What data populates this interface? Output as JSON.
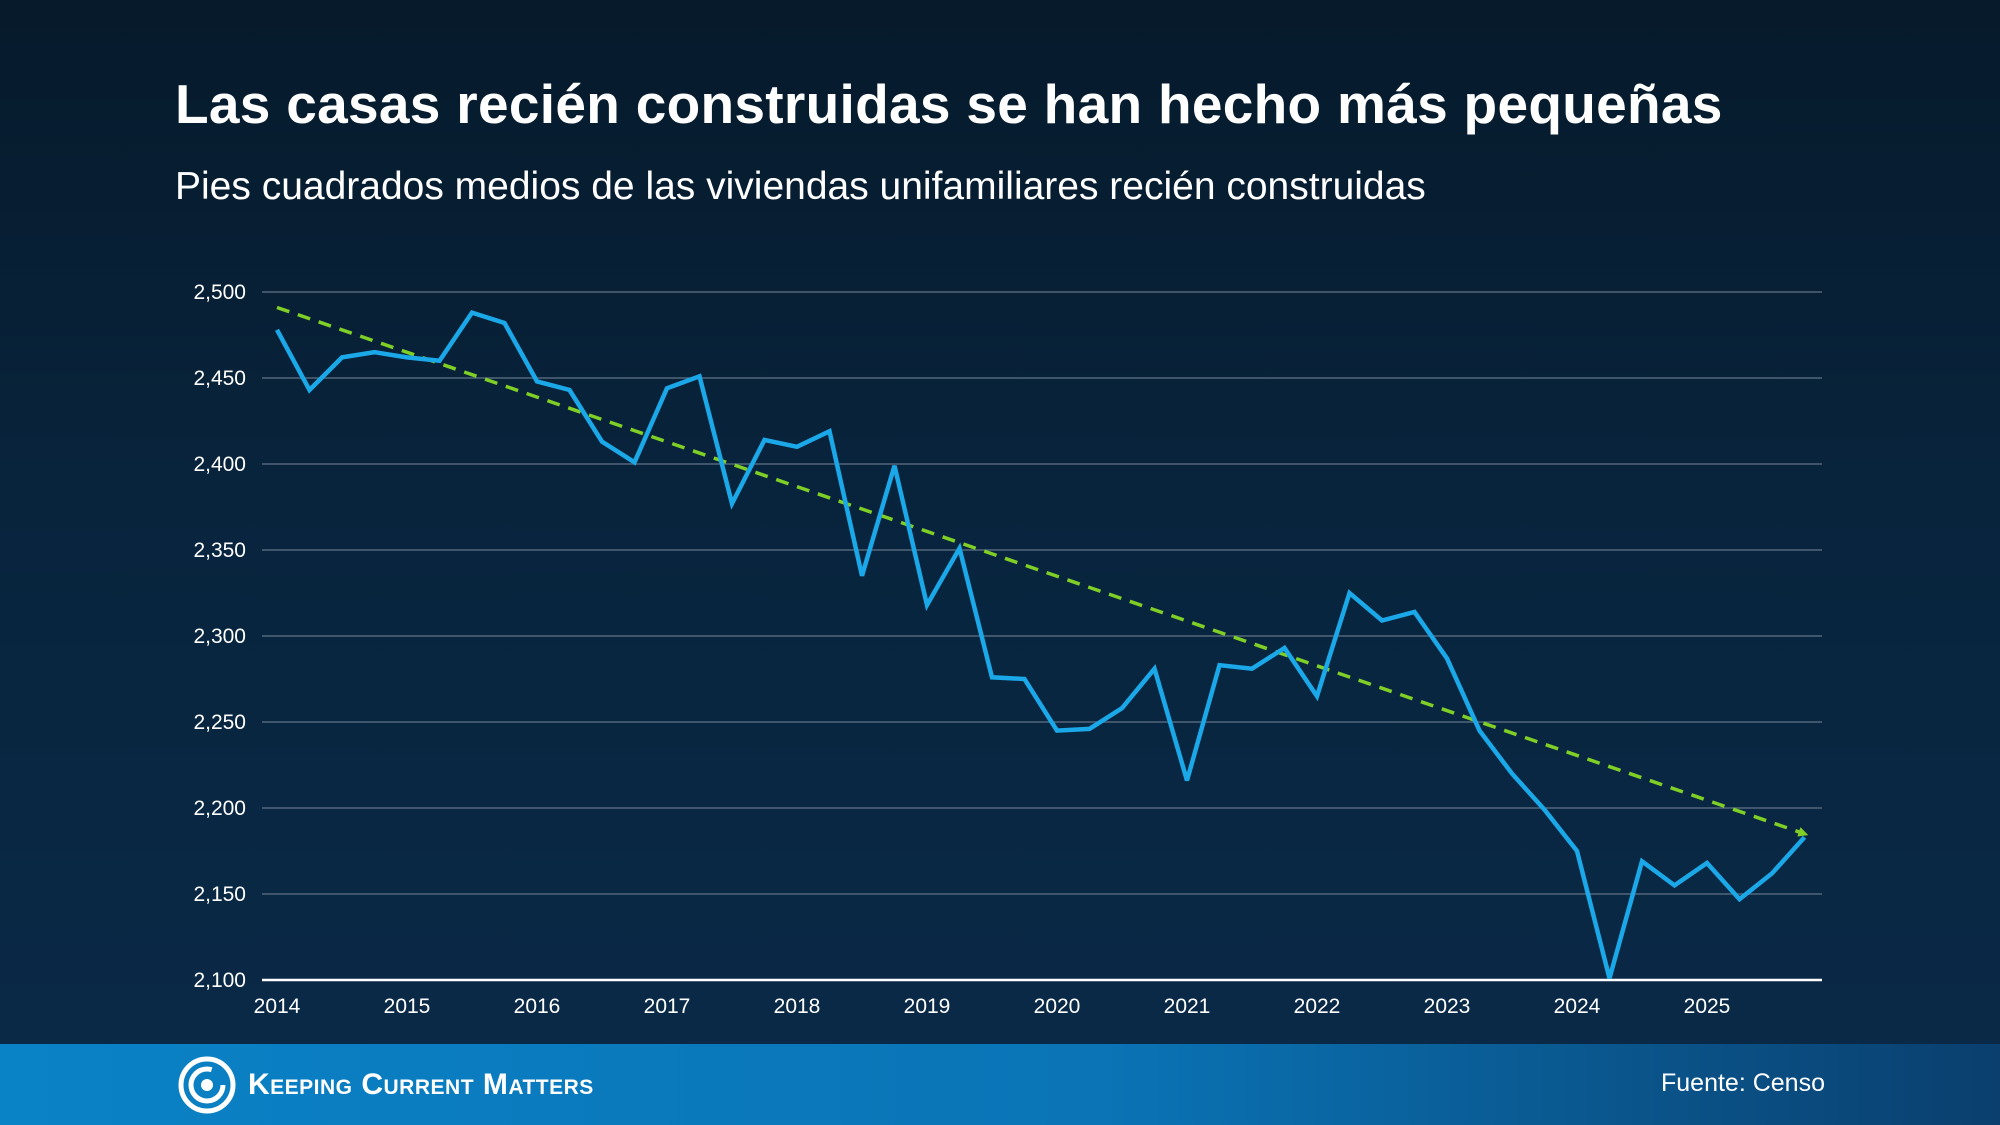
{
  "header": {
    "title": "Las casas recién construidas se han hecho más pequeñas",
    "subtitle": "Pies cuadrados medios de las viviendas unifamiliares recién construidas"
  },
  "footer": {
    "brand": "Keeping Current Matters",
    "source": "Fuente: Censo"
  },
  "colors": {
    "series": "#1ba8e8",
    "trend": "#7fcf26",
    "grid": "#52667a",
    "axis": "#ffffff"
  },
  "chart_data": {
    "type": "line",
    "title": "Las casas recién construidas se han hecho más pequeñas",
    "subtitle": "Pies cuadrados medios de las viviendas unifamiliares recién construidas",
    "xlabel": "",
    "ylabel": "",
    "ylim": [
      2100,
      2500
    ],
    "xlim": [
      2014,
      2025.875
    ],
    "grid": true,
    "x_ticks": [
      "2014",
      "2015",
      "2016",
      "2017",
      "2018",
      "2019",
      "2020",
      "2021",
      "2022",
      "2023",
      "2024",
      "2025"
    ],
    "y_ticks": [
      "2,100",
      "2,150",
      "2,200",
      "2,250",
      "2,300",
      "2,350",
      "2,400",
      "2,450",
      "2,500"
    ],
    "y_tick_values": [
      2100,
      2150,
      2200,
      2250,
      2300,
      2350,
      2400,
      2450,
      2500
    ],
    "series": [
      {
        "x": [
          2014.0,
          2014.25,
          2014.5,
          2014.75,
          2015.0,
          2015.25,
          2015.5,
          2015.75,
          2016.0,
          2016.25,
          2016.5,
          2016.75,
          2017.0,
          2017.25,
          2017.5,
          2017.75,
          2018.0,
          2018.25,
          2018.5,
          2018.75,
          2019.0,
          2019.25,
          2019.5,
          2019.75,
          2020.0,
          2020.25,
          2020.5,
          2020.75,
          2021.0,
          2021.25,
          2021.5,
          2021.75,
          2022.0,
          2022.25,
          2022.5,
          2022.75,
          2023.0,
          2023.25,
          2023.5,
          2023.75,
          2024.0,
          2024.25,
          2024.5,
          2024.75,
          2025.0,
          2025.25,
          2025.5,
          2025.75
        ],
        "values": [
          2478,
          2443,
          2462,
          2465,
          2462,
          2460,
          2488,
          2482,
          2448,
          2443,
          2413,
          2401,
          2444,
          2451,
          2377,
          2414,
          2410,
          2419,
          2335,
          2399,
          2318,
          2351,
          2276,
          2275,
          2245,
          2246,
          2258,
          2281,
          2216,
          2283,
          2281,
          2293,
          2265,
          2325,
          2309,
          2314,
          2287,
          2245,
          2220,
          2199,
          2175,
          2101,
          2169,
          2155,
          2168,
          2147,
          2162,
          2183
        ]
      },
      {
        "type": "trend",
        "x": [
          2014.0,
          2025.75
        ],
        "values": [
          2491,
          2185
        ]
      }
    ]
  }
}
